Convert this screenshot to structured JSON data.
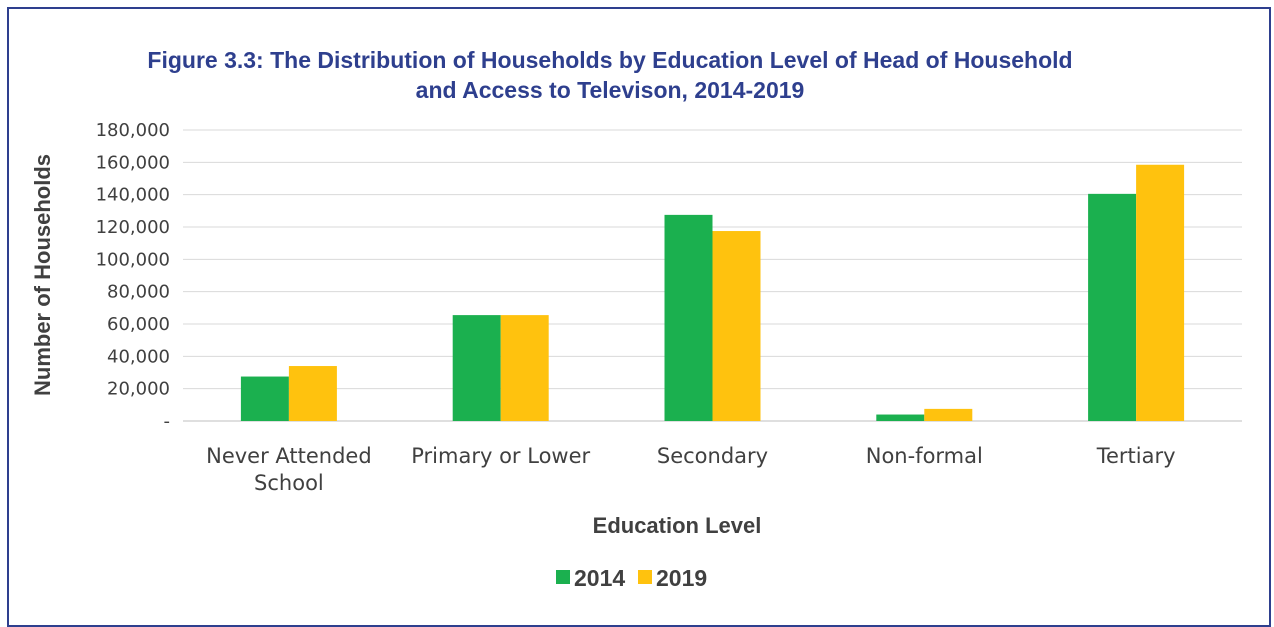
{
  "chart_data": {
    "type": "bar",
    "title": "Figure 3.3: The Distribution of Households by Education Level of Head of Household and Access to Televison, 2014-2019",
    "title_lines": [
      "Figure 3.3: The Distribution of Households by Education Level of Head of Household",
      "and Access to Televison, 2014-2019"
    ],
    "categories": [
      "Never Attended School",
      "Primary or Lower",
      "Secondary",
      "Non-formal",
      "Tertiary"
    ],
    "category_lines": [
      [
        "Never Attended",
        "School"
      ],
      [
        "Primary or Lower"
      ],
      [
        "Secondary"
      ],
      [
        "Non-formal"
      ],
      [
        "Tertiary"
      ]
    ],
    "series": [
      {
        "name": "2014",
        "color": "#1bb04f",
        "values": [
          27500,
          65500,
          127500,
          4000,
          140500
        ]
      },
      {
        "name": "2019",
        "color": "#ffc20e",
        "values": [
          34000,
          65500,
          117500,
          7500,
          158500
        ]
      }
    ],
    "xlabel": "Education Level",
    "ylabel": "Number of Households",
    "ylim": [
      0,
      180000
    ],
    "yticks": [
      0,
      20000,
      40000,
      60000,
      80000,
      100000,
      120000,
      140000,
      160000,
      180000
    ],
    "ytick_labels": [
      "-",
      "20,000",
      "40,000",
      "60,000",
      "80,000",
      "100,000",
      "120,000",
      "140,000",
      "160,000",
      "180,000"
    ],
    "grid": true,
    "legend_position": "bottom"
  }
}
